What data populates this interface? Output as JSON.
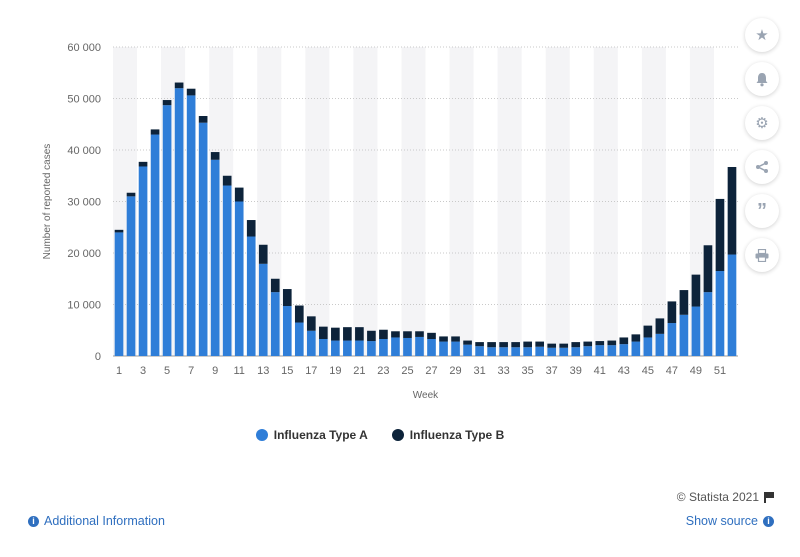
{
  "chart_data": {
    "type": "bar",
    "stacked": true,
    "xlabel": "Week",
    "ylabel": "Number of reported cases",
    "ylim": [
      0,
      60000
    ],
    "yticks": [
      0,
      10000,
      20000,
      30000,
      40000,
      50000,
      60000
    ],
    "ytick_labels": [
      "0",
      "10 000",
      "20 000",
      "30 000",
      "40 000",
      "50 000",
      "60 000"
    ],
    "xtick_labels": [
      "1",
      "3",
      "5",
      "7",
      "9",
      "11",
      "13",
      "15",
      "17",
      "19",
      "21",
      "23",
      "25",
      "27",
      "29",
      "31",
      "33",
      "35",
      "37",
      "39",
      "41",
      "43",
      "45",
      "47",
      "49",
      "51"
    ],
    "weeks": [
      1,
      2,
      3,
      4,
      5,
      6,
      7,
      8,
      9,
      10,
      11,
      12,
      13,
      14,
      15,
      16,
      17,
      18,
      19,
      20,
      21,
      22,
      23,
      24,
      25,
      26,
      27,
      28,
      29,
      30,
      31,
      32,
      33,
      34,
      35,
      36,
      37,
      38,
      39,
      40,
      41,
      42,
      43,
      44,
      45,
      46,
      47,
      48,
      49,
      50,
      51,
      52
    ],
    "series": [
      {
        "name": "Influenza Type A",
        "color": "#2f7ed8",
        "values": [
          24000,
          31000,
          36800,
          43000,
          48700,
          52000,
          50600,
          45300,
          38100,
          33100,
          30000,
          23200,
          17900,
          12400,
          9700,
          6500,
          4900,
          3300,
          3000,
          3000,
          3000,
          2900,
          3300,
          3600,
          3500,
          3700,
          3300,
          2800,
          2800,
          2200,
          1900,
          1700,
          1700,
          1700,
          1700,
          1800,
          1600,
          1600,
          1700,
          1900,
          2100,
          2100,
          2300,
          2800,
          3600,
          4300,
          6400,
          8000,
          9600,
          12400,
          16500,
          19700
        ]
      },
      {
        "name": "Influenza Type B",
        "color": "#0d233a",
        "values": [
          500,
          700,
          900,
          1000,
          1000,
          1100,
          1300,
          1300,
          1500,
          1900,
          2700,
          3200,
          3700,
          2600,
          3300,
          3300,
          2800,
          2400,
          2500,
          2600,
          2600,
          2000,
          1800,
          1200,
          1300,
          1100,
          1200,
          1000,
          1000,
          800,
          800,
          1000,
          1000,
          1000,
          1100,
          1000,
          800,
          800,
          1000,
          900,
          800,
          900,
          1300,
          1400,
          2300,
          3000,
          4200,
          4800,
          6200,
          9100,
          14000,
          17000
        ]
      }
    ],
    "legend_position": "bottom-center",
    "grid": true
  },
  "toolbar": {
    "icons": [
      "star-icon",
      "bell-icon",
      "gear-icon",
      "share-icon",
      "quote-icon",
      "print-icon"
    ]
  },
  "footer": {
    "credit": "© Statista 2021",
    "additional_info": "Additional Information",
    "show_source": "Show source"
  }
}
